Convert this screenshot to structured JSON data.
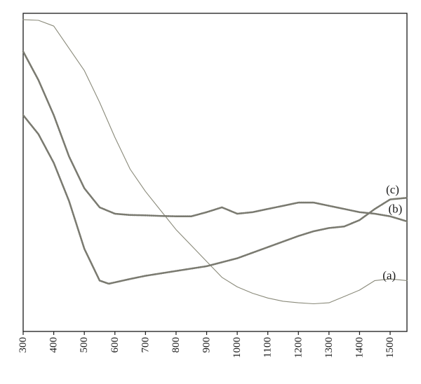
{
  "chart_data": {
    "type": "line",
    "title": "",
    "xlabel": "",
    "ylabel": "",
    "xlim": [
      300,
      1555
    ],
    "ylim": [
      0,
      100
    ],
    "x_ticks": [
      300,
      400,
      500,
      600,
      700,
      800,
      900,
      1000,
      1100,
      1200,
      1300,
      1400,
      1500
    ],
    "y_ticks_visible": false,
    "grid": false,
    "legend": "none",
    "series": [
      {
        "name": "(a)",
        "color": "#8a8a7a",
        "style": "thin",
        "points": [
          [
            300,
            98
          ],
          [
            350,
            97.8
          ],
          [
            400,
            96
          ],
          [
            450,
            89
          ],
          [
            500,
            82
          ],
          [
            550,
            72
          ],
          [
            600,
            61
          ],
          [
            650,
            51
          ],
          [
            700,
            44
          ],
          [
            750,
            38
          ],
          [
            800,
            32
          ],
          [
            850,
            27
          ],
          [
            900,
            22
          ],
          [
            950,
            17
          ],
          [
            1000,
            14
          ],
          [
            1050,
            12
          ],
          [
            1100,
            10.5
          ],
          [
            1150,
            9.5
          ],
          [
            1200,
            9
          ],
          [
            1250,
            8.7
          ],
          [
            1300,
            9
          ],
          [
            1350,
            11
          ],
          [
            1400,
            13
          ],
          [
            1450,
            16
          ],
          [
            1500,
            16.5
          ],
          [
            1555,
            16
          ]
        ]
      },
      {
        "name": "(b)",
        "color": "#7a7a70",
        "style": "dotted",
        "points": [
          [
            300,
            88
          ],
          [
            350,
            79
          ],
          [
            400,
            68
          ],
          [
            450,
            55
          ],
          [
            500,
            45
          ],
          [
            550,
            39
          ],
          [
            600,
            37
          ],
          [
            650,
            36.6
          ],
          [
            700,
            36.5
          ],
          [
            750,
            36.3
          ],
          [
            800,
            36.2
          ],
          [
            850,
            36.2
          ],
          [
            900,
            37.5
          ],
          [
            950,
            39
          ],
          [
            1000,
            37
          ],
          [
            1050,
            37.5
          ],
          [
            1100,
            38.5
          ],
          [
            1150,
            39.5
          ],
          [
            1200,
            40.5
          ],
          [
            1250,
            40.5
          ],
          [
            1300,
            39.5
          ],
          [
            1350,
            38.5
          ],
          [
            1400,
            37.5
          ],
          [
            1450,
            37
          ],
          [
            1500,
            36.2
          ],
          [
            1555,
            34.6
          ]
        ]
      },
      {
        "name": "(c)",
        "color": "#7a7a70",
        "style": "dotted",
        "points": [
          [
            300,
            68
          ],
          [
            350,
            62
          ],
          [
            400,
            53
          ],
          [
            450,
            41
          ],
          [
            500,
            26
          ],
          [
            550,
            16
          ],
          [
            580,
            15
          ],
          [
            650,
            16.5
          ],
          [
            700,
            17.5
          ],
          [
            800,
            19
          ],
          [
            900,
            20.5
          ],
          [
            1000,
            23
          ],
          [
            1100,
            26.5
          ],
          [
            1200,
            30
          ],
          [
            1250,
            31.5
          ],
          [
            1300,
            32.5
          ],
          [
            1350,
            33
          ],
          [
            1400,
            35
          ],
          [
            1450,
            38.5
          ],
          [
            1500,
            41.5
          ],
          [
            1555,
            42
          ]
        ]
      }
    ]
  }
}
